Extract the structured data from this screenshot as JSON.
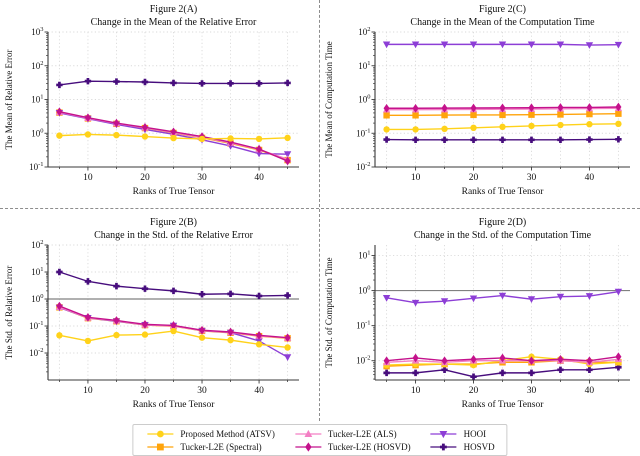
{
  "figure": {
    "background": "#ffffff",
    "divider_color": "#8d8d8d",
    "spine_color": "#3a3a3a",
    "grid_color": "#dadada",
    "hline_color": "#808080"
  },
  "series_defs": {
    "atsv": {
      "name": "Proposed Method (ATSV)",
      "color": "#FFD21A",
      "marker": "circle"
    },
    "spectral": {
      "name": "Tucker-L2E (Spectral)",
      "color": "#FFA40B",
      "marker": "square"
    },
    "als": {
      "name": "Tucker-L2E (ALS)",
      "color": "#F37FC4",
      "marker": "triangle-up"
    },
    "l2e_hosvd": {
      "name": "Tucker-L2E (HOSVD)",
      "color": "#C4128C",
      "marker": "diamond"
    },
    "hooi": {
      "name": "HOOI",
      "color": "#8D3ED6",
      "marker": "triangle-down"
    },
    "hosvd": {
      "name": "HOSVD",
      "color": "#470D7D",
      "marker": "plus"
    }
  },
  "legend": {
    "entries_row_major": [
      "atsv",
      "als",
      "hooi",
      "spectral",
      "l2e_hosvd",
      "hosvd"
    ]
  },
  "chart_data": [
    {
      "id": "2A",
      "type": "line",
      "title_lines": [
        "Figure 2(A)",
        "Change in the Mean of the Relative Error"
      ],
      "xlabel": "Ranks of True Tensor",
      "ylabel": "The Mean of Relative Error",
      "x": [
        5,
        10,
        15,
        20,
        25,
        30,
        35,
        40,
        45
      ],
      "xlim": [
        3,
        47
      ],
      "xticks": [
        10,
        20,
        30,
        40
      ],
      "xminor": [
        5,
        15,
        25,
        35,
        45
      ],
      "grid_x": [
        5,
        10,
        15,
        20,
        25,
        30,
        35,
        40,
        45
      ],
      "ylim_log": [
        -1,
        3
      ],
      "ytick_exponents": [
        3,
        2,
        1,
        0,
        -1
      ],
      "hline_y": null,
      "area": {
        "l": 48,
        "t": 32,
        "r": 299,
        "b": 167
      },
      "draw_order": [
        "spectral",
        "hooi",
        "als",
        "l2e_hosvd",
        "atsv",
        "hosvd"
      ],
      "values": {
        "atsv": [
          0.85,
          0.92,
          0.88,
          0.8,
          0.72,
          0.68,
          0.7,
          0.68,
          0.73
        ],
        "spectral": [
          4.1,
          2.75,
          1.9,
          1.42,
          1.02,
          0.73,
          0.5,
          0.32,
          0.16
        ],
        "als": [
          4.2,
          2.8,
          1.95,
          1.45,
          1.05,
          0.75,
          0.52,
          0.33,
          0.17
        ],
        "l2e_hosvd": [
          4.35,
          2.9,
          2.0,
          1.5,
          1.1,
          0.8,
          0.55,
          0.34,
          0.15
        ],
        "hooi": [
          4.0,
          2.7,
          1.83,
          1.3,
          0.93,
          0.64,
          0.42,
          0.25,
          0.24
        ],
        "hosvd": [
          27,
          35,
          34,
          33,
          31,
          30,
          30,
          30,
          31
        ]
      }
    },
    {
      "id": "2C",
      "type": "line",
      "title_lines": [
        "Figure 2(C)",
        "Change in the Mean of the Computation Time"
      ],
      "xlabel": "Ranks of True Tensor",
      "ylabel": "The Mean of Computation Time",
      "x": [
        5,
        10,
        15,
        20,
        25,
        30,
        35,
        40,
        45
      ],
      "xlim": [
        3,
        47
      ],
      "xticks": [
        10,
        20,
        30,
        40
      ],
      "xminor": [
        5,
        15,
        25,
        35,
        45
      ],
      "grid_x": [
        5,
        10,
        15,
        20,
        25,
        30,
        35,
        40,
        45
      ],
      "ylim_log": [
        -2,
        2
      ],
      "ytick_exponents": [
        2,
        1,
        0,
        -1,
        -2
      ],
      "hline_y": null,
      "area": {
        "l": 55,
        "t": 32,
        "r": 310,
        "b": 167
      },
      "draw_order": [
        "hosvd",
        "atsv",
        "spectral",
        "als",
        "l2e_hosvd",
        "hooi"
      ],
      "values": {
        "atsv": [
          0.13,
          0.13,
          0.135,
          0.145,
          0.155,
          0.165,
          0.175,
          0.185,
          0.19
        ],
        "spectral": [
          0.34,
          0.34,
          0.345,
          0.35,
          0.35,
          0.355,
          0.36,
          0.37,
          0.38
        ],
        "als": [
          0.5,
          0.5,
          0.505,
          0.51,
          0.515,
          0.52,
          0.53,
          0.54,
          0.55
        ],
        "l2e_hosvd": [
          0.55,
          0.55,
          0.555,
          0.56,
          0.565,
          0.57,
          0.58,
          0.58,
          0.6
        ],
        "hooi": [
          43,
          43,
          43,
          43,
          43,
          43,
          43,
          41,
          42
        ],
        "hosvd": [
          0.065,
          0.064,
          0.064,
          0.064,
          0.064,
          0.064,
          0.064,
          0.065,
          0.066
        ]
      }
    },
    {
      "id": "2B",
      "type": "line",
      "title_lines": [
        "Figure 2(B)",
        "Change in the Std. of the Relative Error"
      ],
      "xlabel": "Ranks of True Tensor",
      "ylabel": "The Std. of Relative Error",
      "x": [
        5,
        10,
        15,
        20,
        25,
        30,
        35,
        40,
        45
      ],
      "xlim": [
        3,
        47
      ],
      "xticks": [
        10,
        20,
        30,
        40
      ],
      "xminor": [
        5,
        15,
        25,
        35,
        45
      ],
      "grid_x": [
        5,
        10,
        15,
        20,
        25,
        30,
        35,
        40,
        45
      ],
      "ylim_log": [
        -3,
        2
      ],
      "ytick_exponents": [
        2,
        1,
        0,
        -1,
        -2
      ],
      "hline_y": 1,
      "area": {
        "l": 48,
        "t": 32,
        "r": 299,
        "b": 167
      },
      "draw_order": [
        "spectral",
        "hooi",
        "als",
        "l2e_hosvd",
        "atsv",
        "hosvd"
      ],
      "values": {
        "atsv": [
          0.045,
          0.028,
          0.046,
          0.048,
          0.065,
          0.037,
          0.03,
          0.021,
          0.016
        ],
        "spectral": [
          0.49,
          0.195,
          0.15,
          0.108,
          0.098,
          0.066,
          0.056,
          0.042,
          0.035
        ],
        "als": [
          0.5,
          0.2,
          0.155,
          0.11,
          0.1,
          0.068,
          0.058,
          0.043,
          0.036
        ],
        "l2e_hosvd": [
          0.55,
          0.21,
          0.16,
          0.115,
          0.105,
          0.07,
          0.06,
          0.045,
          0.037
        ],
        "hooi": [
          0.48,
          0.2,
          0.15,
          0.11,
          0.103,
          0.067,
          0.057,
          0.028,
          0.007
        ],
        "hosvd": [
          10,
          4.5,
          3.0,
          2.4,
          2.0,
          1.5,
          1.55,
          1.3,
          1.35
        ]
      }
    },
    {
      "id": "2D",
      "type": "line",
      "title_lines": [
        "Figure 2(D)",
        "Change in the Std. of the Computation Time"
      ],
      "xlabel": "Ranks of True Tensor",
      "ylabel": "The Std. of Computation Time",
      "x": [
        5,
        10,
        15,
        20,
        25,
        30,
        35,
        40,
        45
      ],
      "xlim": [
        3,
        47
      ],
      "xticks": [
        10,
        20,
        30,
        40
      ],
      "xminor": [
        5,
        15,
        25,
        35,
        45
      ],
      "grid_x": [
        5,
        10,
        15,
        20,
        25,
        30,
        35,
        40,
        45
      ],
      "ylim_log": [
        -2.55,
        1.3
      ],
      "ytick_exponents": [
        1,
        0,
        -1,
        -2
      ],
      "hline_y": 1,
      "area": {
        "l": 55,
        "t": 32,
        "r": 310,
        "b": 167
      },
      "draw_order": [
        "hosvd",
        "spectral",
        "atsv",
        "als",
        "l2e_hosvd",
        "hooi"
      ],
      "values": {
        "atsv": [
          0.0075,
          0.008,
          0.008,
          0.0075,
          0.01,
          0.013,
          0.011,
          0.008,
          0.009
        ],
        "spectral": [
          0.007,
          0.0075,
          0.008,
          0.008,
          0.009,
          0.009,
          0.01,
          0.009,
          0.009
        ],
        "als": [
          0.009,
          0.01,
          0.009,
          0.01,
          0.01,
          0.01,
          0.01,
          0.009,
          0.011
        ],
        "l2e_hosvd": [
          0.01,
          0.012,
          0.01,
          0.011,
          0.012,
          0.01,
          0.011,
          0.01,
          0.013
        ],
        "hooi": [
          0.62,
          0.45,
          0.5,
          0.6,
          0.72,
          0.57,
          0.67,
          0.7,
          0.93
        ],
        "hosvd": [
          0.0045,
          0.0045,
          0.0055,
          0.0035,
          0.0045,
          0.0045,
          0.0055,
          0.0055,
          0.0065
        ]
      }
    }
  ]
}
